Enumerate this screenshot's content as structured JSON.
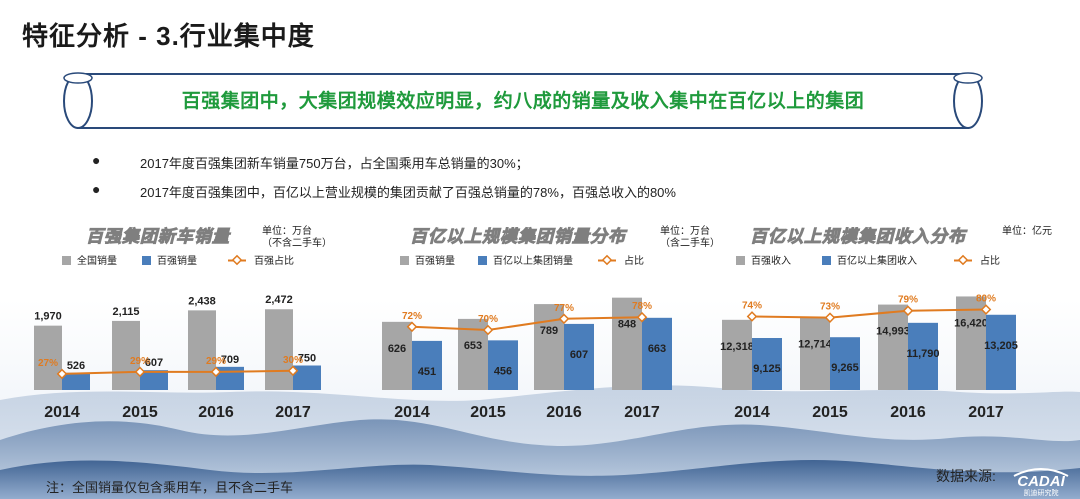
{
  "page": {
    "title": "特征分析 - 3.行业集中度",
    "banner": "百强集团中，大集团规模效应明显，约八成的销量及收入集中在百亿以上的集团",
    "bullets": [
      "2017年度百强集团新车销量750万台，占全国乘用车总销量的30%；",
      "2017年度百强集团中，百亿以上营业规模的集团贡献了百强总销量的78%，百强总收入的80%"
    ],
    "footnote": "注：全国销量仅包含乘用车，且不含二手车",
    "source_label": "数据来源:",
    "logo_text": "CADAI",
    "logo_sub": "凯迪研究院",
    "bullet_symbol": "●"
  },
  "colors": {
    "gray_bar": "#a6a6a6",
    "blue_bar": "#4a7ebb",
    "line": "#e07b20",
    "banner_green": "#1f9a3c"
  },
  "chart_data": [
    {
      "type": "bar",
      "title": "百强集团新车销量",
      "unit": "单位：万台",
      "unit_note": "（不含二手车）",
      "categories": [
        "2014",
        "2015",
        "2016",
        "2017"
      ],
      "series": [
        {
          "name": "全国销量",
          "kind": "bar",
          "values": [
            1970,
            2115,
            2438,
            2472
          ],
          "labels": [
            "1,970",
            "2,115",
            "2,438",
            "2,472"
          ]
        },
        {
          "name": "百强销量",
          "kind": "bar",
          "values": [
            526,
            607,
            709,
            750
          ],
          "labels": [
            "526",
            "607",
            "709",
            "750"
          ]
        },
        {
          "name": "百强占比",
          "kind": "line",
          "values": [
            27,
            29,
            29,
            30
          ],
          "labels": [
            "27%",
            "29%",
            "29%",
            "30%"
          ]
        }
      ],
      "bar_max": 3000,
      "line_range": [
        0,
        100
      ]
    },
    {
      "type": "bar",
      "title": "百亿以上规模集团销量分布",
      "unit": "单位：万台",
      "unit_note": "（含二手车）",
      "categories": [
        "2014",
        "2015",
        "2016",
        "2017"
      ],
      "series": [
        {
          "name": "百强销量",
          "kind": "bar",
          "values": [
            626,
            653,
            789,
            848
          ],
          "labels": [
            "626",
            "653",
            "789",
            "848"
          ]
        },
        {
          "name": "百亿以上集团销量",
          "kind": "bar",
          "values": [
            451,
            456,
            607,
            663
          ],
          "labels": [
            "451",
            "456",
            "607",
            "663"
          ]
        },
        {
          "name": "占比",
          "kind": "line",
          "values": [
            72,
            70,
            77,
            78
          ],
          "labels": [
            "72%",
            "70%",
            "77%",
            "78%"
          ]
        }
      ],
      "bar_max": 900,
      "line_range": [
        25,
        90
      ]
    },
    {
      "type": "bar",
      "title": "百亿以上规模集团收入分布",
      "unit": "单位：亿元",
      "unit_note": "",
      "categories": [
        "2014",
        "2015",
        "2016",
        "2017"
      ],
      "series": [
        {
          "name": "百强收入",
          "kind": "bar",
          "values": [
            12318,
            12714,
            14993,
            16420
          ],
          "labels": [
            "12,318",
            "12,714",
            "14,993",
            "16,420"
          ]
        },
        {
          "name": "百亿以上集团收入",
          "kind": "bar",
          "values": [
            9125,
            9265,
            11790,
            13205
          ],
          "labels": [
            "9,125",
            "9,265",
            "11,790",
            "13,205"
          ]
        },
        {
          "name": "占比",
          "kind": "line",
          "values": [
            74,
            73,
            79,
            80
          ],
          "labels": [
            "74%",
            "73%",
            "79%",
            "80%"
          ]
        }
      ],
      "bar_max": 17200,
      "line_range": [
        0,
        90
      ]
    }
  ]
}
